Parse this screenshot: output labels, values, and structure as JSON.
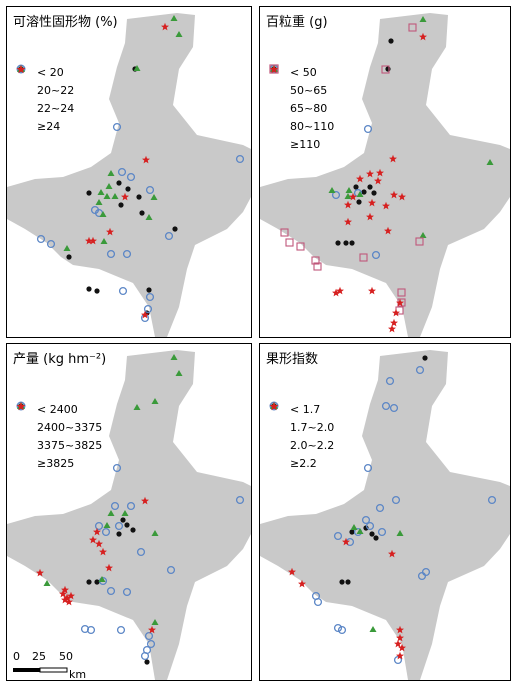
{
  "colors": {
    "land": "#c9c9c9",
    "black_class": "#111111",
    "blue_class": "#5b86c6",
    "green_class": "#3a9a3a",
    "red_class": "#d62020",
    "pink_class": "#c0577a"
  },
  "panels": [
    {
      "id": "tss",
      "title": "可溶性固形物 (%)",
      "legend": [
        {
          "symbol": "dot",
          "label": "< 20"
        },
        {
          "symbol": "circle",
          "label": "20~22"
        },
        {
          "symbol": "triangle",
          "label": "22~24"
        },
        {
          "symbol": "star",
          "label": "≥24"
        }
      ]
    },
    {
      "id": "berry-weight",
      "title": "百粒重 (g)",
      "legend": [
        {
          "symbol": "dot",
          "label": "< 50"
        },
        {
          "symbol": "circle",
          "label": "50~65"
        },
        {
          "symbol": "triangle",
          "label": "65~80"
        },
        {
          "symbol": "star",
          "label": "80~110"
        },
        {
          "symbol": "square",
          "label": "≥110"
        }
      ]
    },
    {
      "id": "yield",
      "title": "产量 (kg hm⁻²)",
      "legend": [
        {
          "symbol": "dot",
          "label": "< 2400"
        },
        {
          "symbol": "circle",
          "label": "2400~3375"
        },
        {
          "symbol": "triangle",
          "label": "3375~3825"
        },
        {
          "symbol": "star",
          "label": "≥3825"
        }
      ]
    },
    {
      "id": "shape-index",
      "title": "果形指数",
      "legend": [
        {
          "symbol": "dot",
          "label": "< 1.7"
        },
        {
          "symbol": "circle",
          "label": "1.7~2.0"
        },
        {
          "symbol": "triangle",
          "label": "2.0~2.2"
        },
        {
          "symbol": "star",
          "label": "≥2.2"
        }
      ]
    }
  ],
  "scale_bar": {
    "ticks": [
      "0",
      "25",
      "50"
    ],
    "unit": "km"
  }
}
